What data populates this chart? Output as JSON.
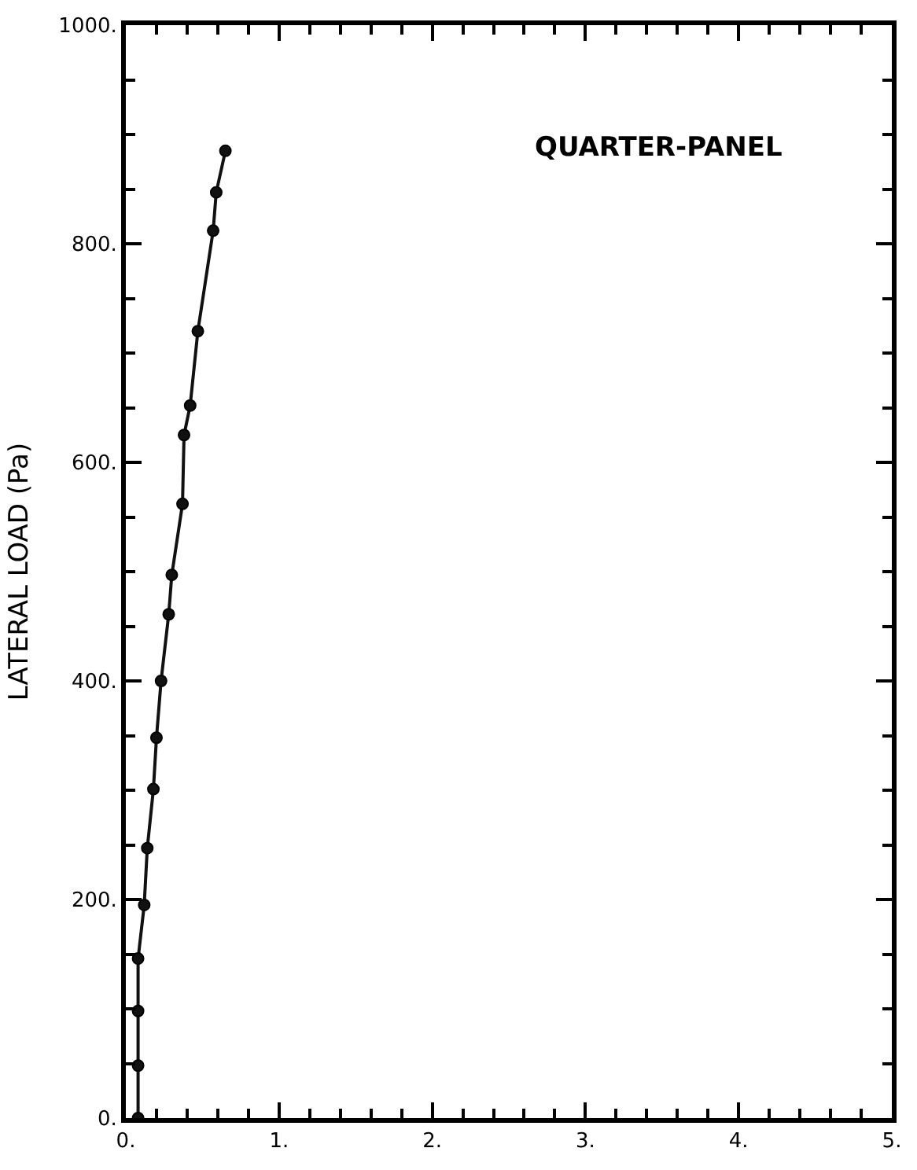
{
  "chart_data": {
    "type": "line",
    "ylabel": "LATERAL LOAD (Pa)",
    "annotations": [
      "QUARTER-PANEL"
    ],
    "x": [
      0.08,
      0.08,
      0.08,
      0.08,
      0.12,
      0.14,
      0.18,
      0.2,
      0.23,
      0.28,
      0.3,
      0.37,
      0.38,
      0.42,
      0.47,
      0.57,
      0.59,
      0.65
    ],
    "series": [
      {
        "color": "#111111",
        "values": [
          0,
          48,
          98,
          146,
          195,
          247,
          301,
          348,
          400,
          461,
          497,
          562,
          625,
          652,
          720,
          812,
          847,
          885
        ]
      }
    ],
    "marker": "circle",
    "line_style": "solid",
    "xlim": [
      0,
      5
    ],
    "ylim": [
      0,
      1000
    ],
    "xticks": [
      {
        "value": 0,
        "label": "0."
      },
      {
        "value": 0.2,
        "label": null
      },
      {
        "value": 0.4,
        "label": null
      },
      {
        "value": 0.6,
        "label": null
      },
      {
        "value": 0.8,
        "label": null
      },
      {
        "value": 1,
        "label": "1."
      },
      {
        "value": 1.2,
        "label": null
      },
      {
        "value": 1.4,
        "label": null
      },
      {
        "value": 1.6,
        "label": null
      },
      {
        "value": 1.8,
        "label": null
      },
      {
        "value": 2,
        "label": "2."
      },
      {
        "value": 2.2,
        "label": null
      },
      {
        "value": 2.4,
        "label": null
      },
      {
        "value": 2.6,
        "label": null
      },
      {
        "value": 2.8,
        "label": null
      },
      {
        "value": 3,
        "label": "3."
      },
      {
        "value": 3.2,
        "label": null
      },
      {
        "value": 3.4,
        "label": null
      },
      {
        "value": 3.6,
        "label": null
      },
      {
        "value": 3.8,
        "label": null
      },
      {
        "value": 4,
        "label": "4."
      },
      {
        "value": 4.2,
        "label": null
      },
      {
        "value": 4.4,
        "label": null
      },
      {
        "value": 4.6,
        "label": null
      },
      {
        "value": 4.8,
        "label": null
      },
      {
        "value": 5,
        "label": "5."
      }
    ],
    "yticks": [
      {
        "value": 0,
        "label": "0."
      },
      {
        "value": 50,
        "label": null
      },
      {
        "value": 100,
        "label": null
      },
      {
        "value": 150,
        "label": null
      },
      {
        "value": 200,
        "label": "200."
      },
      {
        "value": 250,
        "label": null
      },
      {
        "value": 300,
        "label": null
      },
      {
        "value": 350,
        "label": null
      },
      {
        "value": 400,
        "label": "400."
      },
      {
        "value": 450,
        "label": null
      },
      {
        "value": 500,
        "label": null
      },
      {
        "value": 550,
        "label": null
      },
      {
        "value": 600,
        "label": "600."
      },
      {
        "value": 650,
        "label": null
      },
      {
        "value": 700,
        "label": null
      },
      {
        "value": 750,
        "label": null
      },
      {
        "value": 800,
        "label": "800."
      },
      {
        "value": 850,
        "label": null
      },
      {
        "value": 900,
        "label": null
      },
      {
        "value": 950,
        "label": null
      },
      {
        "value": 1000,
        "label": "1000."
      }
    ]
  }
}
